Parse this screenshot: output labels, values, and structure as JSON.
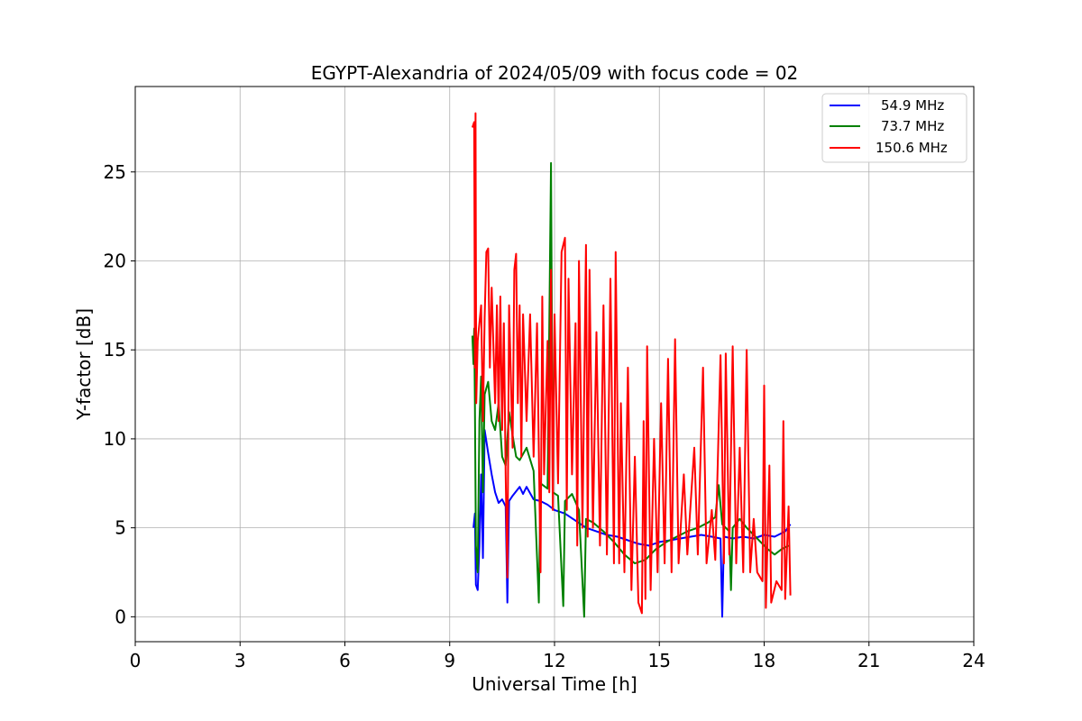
{
  "chart_data": {
    "type": "line",
    "title": "EGYPT-Alexandria of 2024/05/09 with focus code = 02",
    "xlabel": "Universal Time [h]",
    "ylabel": "Y-factor [dB]",
    "xlim": [
      0,
      24
    ],
    "ylim": [
      -1.4,
      29.8
    ],
    "xticks": [
      0,
      3,
      6,
      9,
      12,
      15,
      18,
      21,
      24
    ],
    "yticks": [
      0,
      5,
      10,
      15,
      20,
      25
    ],
    "grid": true,
    "legend_position": "top-right",
    "series": [
      {
        "name": "54.9 MHz",
        "color": "#0000ff",
        "points": [
          [
            9.68,
            5.0
          ],
          [
            9.72,
            5.8
          ],
          [
            9.75,
            1.8
          ],
          [
            9.8,
            1.5
          ],
          [
            9.85,
            4.0
          ],
          [
            9.9,
            8.0
          ],
          [
            9.95,
            3.3
          ],
          [
            10.0,
            10.5
          ],
          [
            10.1,
            9.2
          ],
          [
            10.2,
            8.0
          ],
          [
            10.3,
            7.0
          ],
          [
            10.4,
            6.4
          ],
          [
            10.5,
            6.6
          ],
          [
            10.6,
            6.2
          ],
          [
            10.65,
            0.8
          ],
          [
            10.7,
            6.5
          ],
          [
            10.8,
            6.8
          ],
          [
            11.0,
            7.3
          ],
          [
            11.1,
            6.9
          ],
          [
            11.2,
            7.3
          ],
          [
            11.4,
            6.6
          ],
          [
            11.6,
            6.5
          ],
          [
            11.8,
            6.3
          ],
          [
            12.0,
            6.0
          ],
          [
            12.3,
            5.8
          ],
          [
            12.6,
            5.4
          ],
          [
            12.9,
            5.0
          ],
          [
            13.2,
            4.8
          ],
          [
            13.5,
            4.6
          ],
          [
            13.8,
            4.5
          ],
          [
            14.1,
            4.3
          ],
          [
            14.4,
            4.1
          ],
          [
            14.7,
            4.0
          ],
          [
            15.0,
            4.2
          ],
          [
            15.3,
            4.3
          ],
          [
            15.6,
            4.4
          ],
          [
            15.9,
            4.5
          ],
          [
            16.2,
            4.6
          ],
          [
            16.5,
            4.5
          ],
          [
            16.75,
            4.4
          ],
          [
            16.8,
            0.0
          ],
          [
            16.85,
            4.5
          ],
          [
            17.1,
            4.4
          ],
          [
            17.4,
            4.5
          ],
          [
            17.7,
            4.4
          ],
          [
            18.0,
            4.6
          ],
          [
            18.3,
            4.5
          ],
          [
            18.6,
            4.8
          ],
          [
            18.75,
            5.2
          ]
        ]
      },
      {
        "name": "73.7 MHz",
        "color": "#008000",
        "points": [
          [
            9.65,
            15.8
          ],
          [
            9.68,
            14.2
          ],
          [
            9.7,
            16.2
          ],
          [
            9.72,
            12.0
          ],
          [
            9.75,
            4.0
          ],
          [
            9.8,
            2.5
          ],
          [
            9.85,
            11.0
          ],
          [
            9.9,
            13.5
          ],
          [
            9.95,
            7.0
          ],
          [
            10.0,
            12.5
          ],
          [
            10.1,
            13.2
          ],
          [
            10.2,
            11.0
          ],
          [
            10.3,
            10.5
          ],
          [
            10.4,
            12.0
          ],
          [
            10.5,
            9.0
          ],
          [
            10.6,
            8.5
          ],
          [
            10.7,
            11.5
          ],
          [
            10.8,
            10.2
          ],
          [
            10.9,
            9.0
          ],
          [
            11.0,
            8.8
          ],
          [
            11.2,
            9.5
          ],
          [
            11.4,
            8.2
          ],
          [
            11.55,
            0.8
          ],
          [
            11.6,
            7.5
          ],
          [
            11.8,
            7.2
          ],
          [
            11.9,
            25.5
          ],
          [
            11.95,
            7.0
          ],
          [
            12.1,
            6.8
          ],
          [
            12.25,
            0.6
          ],
          [
            12.3,
            6.5
          ],
          [
            12.5,
            6.9
          ],
          [
            12.7,
            6.0
          ],
          [
            12.85,
            0.0
          ],
          [
            12.9,
            5.5
          ],
          [
            13.1,
            5.3
          ],
          [
            13.4,
            4.8
          ],
          [
            13.7,
            4.2
          ],
          [
            14.0,
            3.5
          ],
          [
            14.3,
            3.0
          ],
          [
            14.6,
            3.2
          ],
          [
            14.9,
            3.8
          ],
          [
            15.2,
            4.2
          ],
          [
            15.5,
            4.5
          ],
          [
            15.8,
            4.8
          ],
          [
            16.1,
            5.0
          ],
          [
            16.4,
            5.3
          ],
          [
            16.6,
            5.6
          ],
          [
            16.7,
            7.4
          ],
          [
            16.8,
            5.2
          ],
          [
            17.0,
            4.8
          ],
          [
            17.05,
            1.5
          ],
          [
            17.1,
            5.0
          ],
          [
            17.3,
            5.5
          ],
          [
            17.5,
            5.0
          ],
          [
            17.7,
            4.6
          ],
          [
            17.9,
            4.2
          ],
          [
            18.1,
            3.8
          ],
          [
            18.3,
            3.5
          ],
          [
            18.5,
            3.8
          ],
          [
            18.7,
            4.0
          ]
        ]
      },
      {
        "name": "150.6 MHz",
        "color": "#ff0000",
        "points": [
          [
            9.65,
            27.5
          ],
          [
            9.7,
            27.8
          ],
          [
            9.72,
            14.0
          ],
          [
            9.74,
            28.3
          ],
          [
            9.76,
            12.0
          ],
          [
            9.8,
            15.5
          ],
          [
            9.9,
            17.5
          ],
          [
            9.95,
            11.0
          ],
          [
            10.0,
            16.8
          ],
          [
            10.05,
            20.5
          ],
          [
            10.1,
            20.7
          ],
          [
            10.15,
            14.0
          ],
          [
            10.2,
            18.5
          ],
          [
            10.3,
            12.0
          ],
          [
            10.35,
            17.5
          ],
          [
            10.4,
            11.0
          ],
          [
            10.45,
            18.0
          ],
          [
            10.5,
            10.5
          ],
          [
            10.55,
            16.5
          ],
          [
            10.6,
            8.0
          ],
          [
            10.65,
            2.2
          ],
          [
            10.7,
            17.5
          ],
          [
            10.8,
            9.5
          ],
          [
            10.85,
            19.5
          ],
          [
            10.9,
            20.4
          ],
          [
            10.95,
            12.0
          ],
          [
            11.0,
            17.5
          ],
          [
            11.05,
            9.0
          ],
          [
            11.1,
            17.0
          ],
          [
            11.2,
            11.0
          ],
          [
            11.3,
            17.0
          ],
          [
            11.4,
            9.0
          ],
          [
            11.5,
            16.5
          ],
          [
            11.6,
            2.5
          ],
          [
            11.65,
            18.0
          ],
          [
            11.7,
            8.0
          ],
          [
            11.8,
            15.5
          ],
          [
            11.85,
            7.0
          ],
          [
            11.9,
            19.5
          ],
          [
            11.95,
            6.0
          ],
          [
            12.0,
            17.0
          ],
          [
            12.1,
            7.5
          ],
          [
            12.2,
            20.5
          ],
          [
            12.3,
            21.3
          ],
          [
            12.35,
            6.0
          ],
          [
            12.4,
            19.0
          ],
          [
            12.5,
            8.0
          ],
          [
            12.6,
            16.5
          ],
          [
            12.65,
            4.0
          ],
          [
            12.7,
            20.0
          ],
          [
            12.8,
            5.0
          ],
          [
            12.9,
            20.9
          ],
          [
            12.95,
            4.5
          ],
          [
            13.0,
            19.5
          ],
          [
            13.1,
            5.0
          ],
          [
            13.2,
            16.0
          ],
          [
            13.3,
            4.0
          ],
          [
            13.4,
            17.5
          ],
          [
            13.5,
            3.5
          ],
          [
            13.6,
            19.0
          ],
          [
            13.7,
            3.0
          ],
          [
            13.75,
            20.5
          ],
          [
            13.85,
            3.0
          ],
          [
            13.9,
            12.0
          ],
          [
            14.0,
            2.5
          ],
          [
            14.1,
            14.0
          ],
          [
            14.2,
            1.5
          ],
          [
            14.3,
            9.0
          ],
          [
            14.4,
            0.8
          ],
          [
            14.5,
            0.2
          ],
          [
            14.55,
            11.0
          ],
          [
            14.6,
            1.0
          ],
          [
            14.65,
            15.2
          ],
          [
            14.75,
            1.5
          ],
          [
            14.85,
            10.0
          ],
          [
            14.95,
            2.5
          ],
          [
            15.05,
            12.0
          ],
          [
            15.15,
            3.0
          ],
          [
            15.25,
            14.5
          ],
          [
            15.35,
            2.5
          ],
          [
            15.45,
            15.6
          ],
          [
            15.55,
            3.0
          ],
          [
            15.7,
            8.0
          ],
          [
            15.8,
            3.5
          ],
          [
            16.0,
            9.5
          ],
          [
            16.1,
            3.5
          ],
          [
            16.25,
            14.0
          ],
          [
            16.35,
            3.0
          ],
          [
            16.5,
            6.0
          ],
          [
            16.6,
            3.2
          ],
          [
            16.75,
            14.7
          ],
          [
            16.85,
            3.0
          ],
          [
            16.9,
            14.8
          ],
          [
            17.0,
            3.5
          ],
          [
            17.1,
            15.2
          ],
          [
            17.2,
            3.0
          ],
          [
            17.3,
            9.5
          ],
          [
            17.4,
            2.5
          ],
          [
            17.5,
            15.0
          ],
          [
            17.6,
            2.5
          ],
          [
            17.7,
            5.5
          ],
          [
            17.8,
            2.5
          ],
          [
            17.95,
            2.0
          ],
          [
            18.0,
            13.0
          ],
          [
            18.05,
            0.5
          ],
          [
            18.15,
            8.5
          ],
          [
            18.2,
            0.8
          ],
          [
            18.35,
            2.0
          ],
          [
            18.5,
            1.5
          ],
          [
            18.55,
            11.0
          ],
          [
            18.6,
            1.0
          ],
          [
            18.7,
            6.2
          ],
          [
            18.75,
            1.2
          ]
        ]
      }
    ]
  }
}
